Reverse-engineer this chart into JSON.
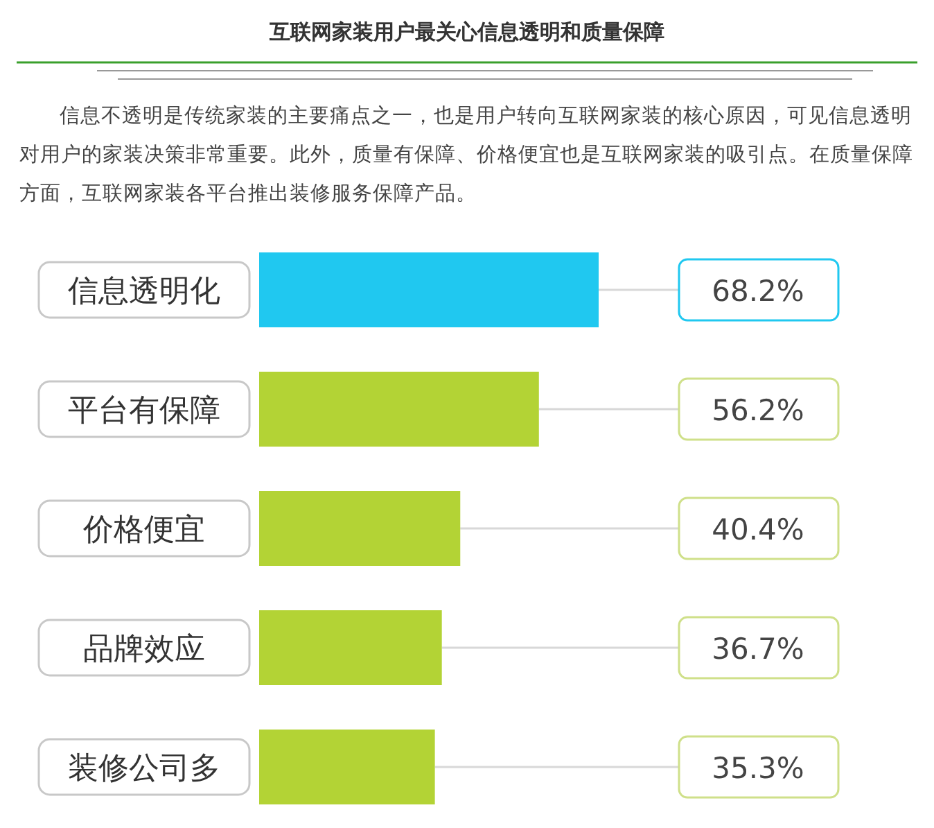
{
  "chart_data": {
    "type": "bar",
    "orientation": "horizontal",
    "title": "互联网家装用户最关心信息透明和质量保障",
    "subtitle": "信息不透明是传统家装的主要痛点之一，也是用户转向互联网家装的核心原因，可见信息透明对用户的家装决策非常重要。此外，质量有保障、价格便宜也是互联网家装的吸引点。在质量保障方面，互联网家装各平台推出装修服务保障产品。",
    "categories": [
      "信息透明化",
      "平台有保障",
      "价格便宜",
      "品牌效应",
      "装修公司多"
    ],
    "values": [
      68.2,
      56.2,
      40.4,
      36.7,
      35.3
    ],
    "colors": [
      "#20c8f0",
      "#b3d335",
      "#b3d335",
      "#b3d335",
      "#b3d335"
    ],
    "value_labels": [
      "68.2%",
      "56.2%",
      "40.4%",
      "36.7%",
      "35.3%"
    ]
  }
}
